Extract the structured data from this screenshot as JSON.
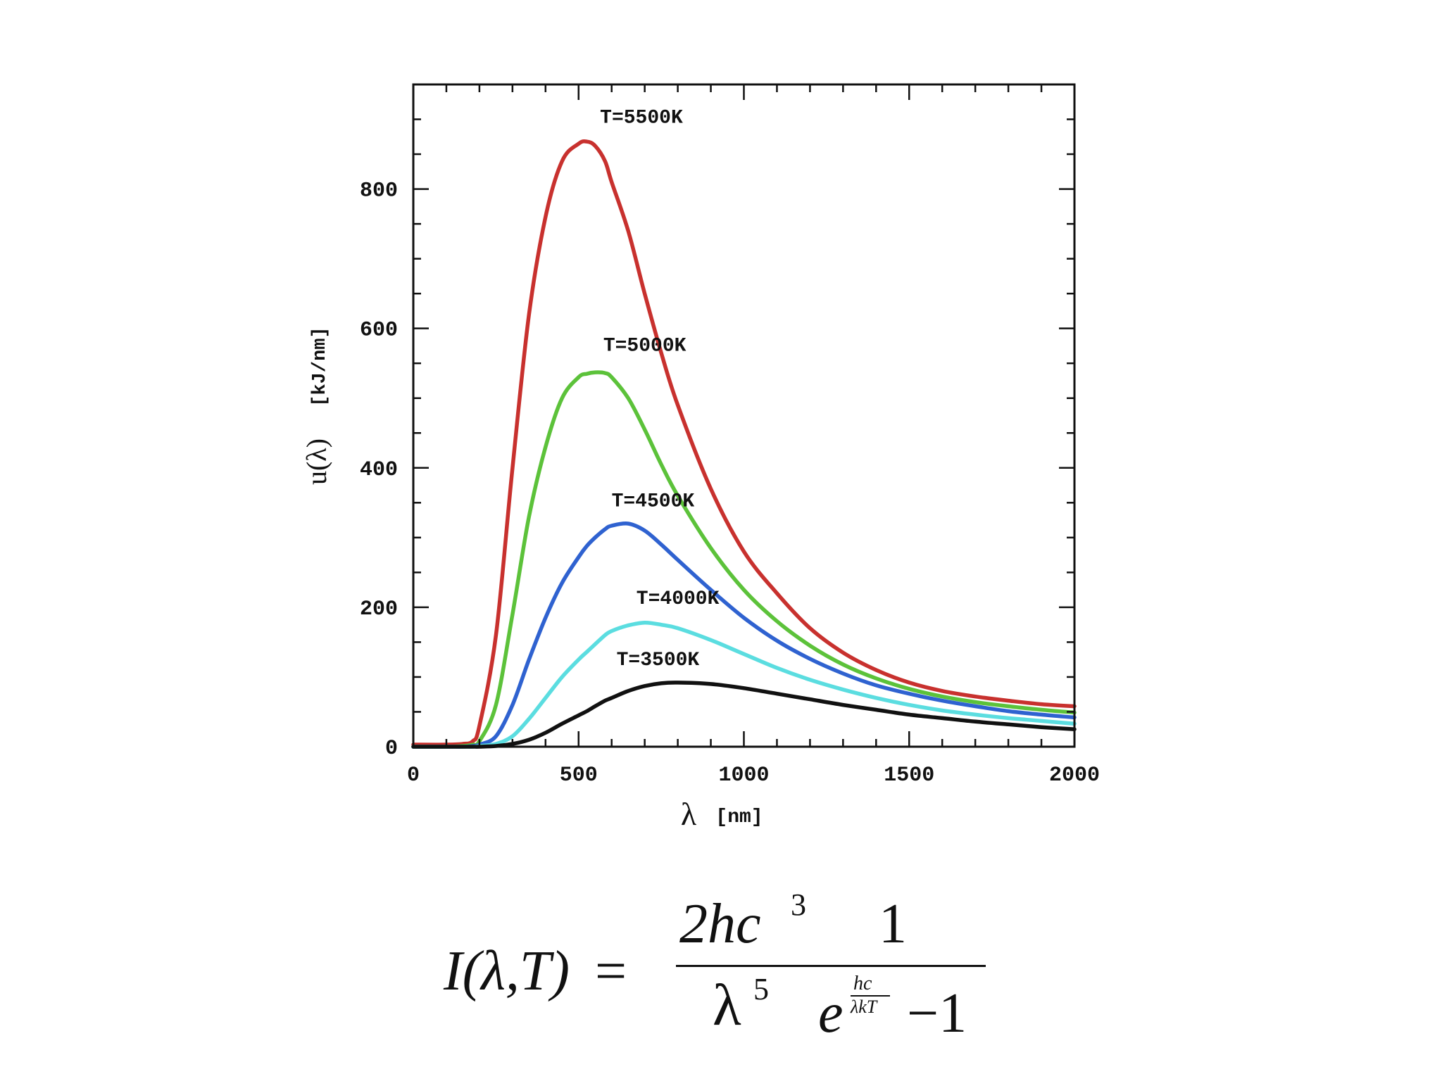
{
  "chart_data": {
    "type": "line",
    "title": "",
    "xlabel": "λ",
    "xlabel_unit": "[nm]",
    "ylabel": "u(λ)",
    "ylabel_unit": "[kJ/nm]",
    "xlim": [
      0,
      2000
    ],
    "ylim": [
      0,
      950
    ],
    "x_ticks": [
      "0",
      "500",
      "1000",
      "1500",
      "2000"
    ],
    "y_ticks": [
      "0",
      "200",
      "400",
      "600",
      "800"
    ],
    "x_tick_values": [
      0,
      500,
      1000,
      1500,
      2000
    ],
    "y_tick_values": [
      0,
      200,
      400,
      600,
      800
    ],
    "grid": false,
    "x": [
      0,
      100,
      150,
      180,
      200,
      250,
      300,
      350,
      400,
      450,
      500,
      525,
      550,
      580,
      600,
      650,
      700,
      750,
      800,
      900,
      1000,
      1100,
      1200,
      1300,
      1400,
      1500,
      1600,
      1700,
      1800,
      1900,
      2000
    ],
    "series": [
      {
        "name": "T=5500K",
        "color": "#c8312e",
        "values": [
          3,
          3,
          4,
          8,
          30,
          160,
          400,
          620,
          760,
          840,
          865,
          868,
          862,
          840,
          810,
          740,
          650,
          565,
          490,
          370,
          280,
          220,
          170,
          135,
          110,
          92,
          80,
          72,
          66,
          61,
          58
        ]
      },
      {
        "name": "T=5000K",
        "color": "#5cc23a",
        "values": [
          0,
          0,
          1,
          3,
          8,
          60,
          190,
          330,
          430,
          500,
          530,
          535,
          537,
          536,
          530,
          500,
          455,
          405,
          360,
          285,
          225,
          180,
          145,
          118,
          98,
          83,
          72,
          64,
          58,
          53,
          49
        ]
      },
      {
        "name": "T=4500K",
        "color": "#2f62d0",
        "values": [
          0,
          0,
          0,
          1,
          3,
          15,
          60,
          125,
          185,
          235,
          272,
          288,
          300,
          312,
          317,
          320,
          310,
          290,
          268,
          225,
          185,
          152,
          126,
          105,
          88,
          76,
          66,
          58,
          51,
          46,
          42
        ]
      },
      {
        "name": "T=4000K",
        "color": "#5bdde0",
        "values": [
          0,
          0,
          0,
          0,
          1,
          4,
          15,
          40,
          70,
          100,
          125,
          136,
          147,
          160,
          166,
          174,
          178,
          175,
          170,
          153,
          133,
          113,
          96,
          82,
          70,
          60,
          52,
          46,
          41,
          37,
          33
        ]
      },
      {
        "name": "T=3500K",
        "color": "#111111",
        "values": [
          0,
          0,
          0,
          0,
          0,
          1,
          4,
          10,
          20,
          33,
          45,
          51,
          58,
          66,
          70,
          80,
          87,
          91,
          92,
          90,
          84,
          76,
          68,
          60,
          53,
          46,
          41,
          36,
          32,
          28,
          25
        ]
      }
    ],
    "annotations": [
      {
        "text": "T=5500K",
        "x": 690,
        "y": 895
      },
      {
        "text": "T=5000K",
        "x": 700,
        "y": 568
      },
      {
        "text": "T=4500K",
        "x": 725,
        "y": 345
      },
      {
        "text": "T=4000K",
        "x": 800,
        "y": 205
      },
      {
        "text": "T=3500K",
        "x": 740,
        "y": 117
      }
    ]
  },
  "formula": {
    "lhs": "I(λ,T)",
    "equals": "=",
    "num1": "2hc",
    "num1_exp": "3",
    "den1": "λ",
    "den1_exp": "5",
    "num2": "1",
    "den2_base": "e",
    "den2_exp_num": "hc",
    "den2_exp_den": "λkT",
    "den2_tail": "−1"
  }
}
